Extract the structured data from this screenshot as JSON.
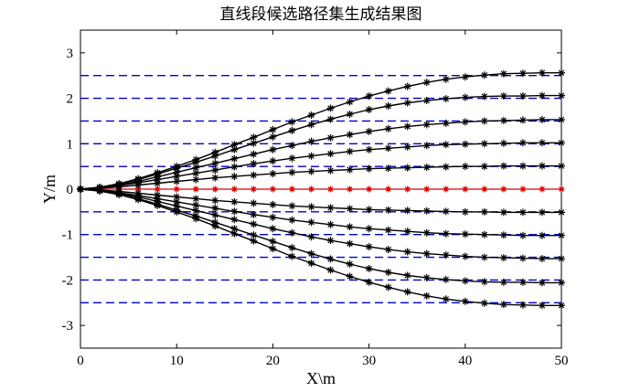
{
  "chart_data": {
    "type": "line",
    "title": "直线段候选路径集生成结果图",
    "xlabel": "X\\m",
    "ylabel": "Y/m",
    "xlim": [
      0,
      50
    ],
    "ylim": [
      -3.5,
      3.5
    ],
    "xticks": [
      0,
      10,
      20,
      30,
      40,
      50
    ],
    "yticks": [
      -3,
      -2,
      -1,
      0,
      1,
      2,
      3
    ],
    "xtick_labels": [
      "0",
      "10",
      "20",
      "30",
      "40",
      "50"
    ],
    "ytick_labels": [
      "-3",
      "-2",
      "-1",
      "0",
      "1",
      "2",
      "3"
    ],
    "grid": false,
    "reference_lines": {
      "y": [
        2.5,
        2.0,
        1.5,
        1.0,
        0.5,
        -0.5,
        -1.0,
        -1.5,
        -2.0,
        -2.5
      ],
      "x_range": [
        0,
        50
      ],
      "color": "#0000cc",
      "style": "dashed"
    },
    "center_line": {
      "y": 0,
      "x_range": [
        0,
        50
      ],
      "color": "#dd0000",
      "marker": "star"
    },
    "paths": {
      "x": [
        0,
        2,
        4,
        6,
        8,
        10,
        12,
        14,
        16,
        18,
        20,
        22,
        24,
        26,
        28,
        30,
        32,
        34,
        36,
        38,
        40,
        42,
        44,
        46,
        48,
        50
      ],
      "color": "#000000",
      "marker": "star",
      "series": [
        {
          "end_y": 2.5,
          "y": [
            0,
            0.04,
            0.12,
            0.23,
            0.36,
            0.5,
            0.65,
            0.81,
            0.98,
            1.14,
            1.31,
            1.48,
            1.63,
            1.78,
            1.92,
            2.05,
            2.16,
            2.26,
            2.35,
            2.42,
            2.47,
            2.51,
            2.54,
            2.55,
            2.56,
            2.56
          ]
        },
        {
          "end_y": 2.0,
          "y": [
            0,
            0.04,
            0.11,
            0.21,
            0.33,
            0.46,
            0.59,
            0.73,
            0.87,
            1.01,
            1.15,
            1.29,
            1.42,
            1.54,
            1.65,
            1.75,
            1.83,
            1.9,
            1.95,
            1.99,
            2.02,
            2.04,
            2.05,
            2.05,
            2.06,
            2.06
          ]
        },
        {
          "end_y": 1.5,
          "y": [
            0,
            0.03,
            0.09,
            0.17,
            0.27,
            0.37,
            0.47,
            0.57,
            0.67,
            0.77,
            0.87,
            0.96,
            1.05,
            1.13,
            1.2,
            1.27,
            1.33,
            1.38,
            1.42,
            1.45,
            1.48,
            1.5,
            1.51,
            1.52,
            1.53,
            1.53
          ]
        },
        {
          "end_y": 1.0,
          "y": [
            0,
            0.03,
            0.08,
            0.14,
            0.21,
            0.28,
            0.35,
            0.42,
            0.49,
            0.56,
            0.62,
            0.68,
            0.73,
            0.78,
            0.83,
            0.87,
            0.9,
            0.93,
            0.96,
            0.98,
            0.99,
            1.0,
            1.01,
            1.02,
            1.02,
            1.02
          ]
        },
        {
          "end_y": 0.5,
          "y": [
            0,
            0.02,
            0.05,
            0.09,
            0.13,
            0.17,
            0.21,
            0.25,
            0.28,
            0.31,
            0.34,
            0.37,
            0.39,
            0.41,
            0.43,
            0.45,
            0.46,
            0.47,
            0.48,
            0.49,
            0.5,
            0.5,
            0.51,
            0.51,
            0.51,
            0.51
          ]
        },
        {
          "end_y": -0.5,
          "y": [
            0,
            -0.02,
            -0.05,
            -0.09,
            -0.13,
            -0.17,
            -0.21,
            -0.25,
            -0.28,
            -0.31,
            -0.34,
            -0.37,
            -0.39,
            -0.41,
            -0.43,
            -0.45,
            -0.46,
            -0.47,
            -0.48,
            -0.49,
            -0.5,
            -0.5,
            -0.51,
            -0.51,
            -0.51,
            -0.51
          ]
        },
        {
          "end_y": -1.0,
          "y": [
            0,
            -0.03,
            -0.08,
            -0.14,
            -0.21,
            -0.28,
            -0.35,
            -0.42,
            -0.49,
            -0.56,
            -0.62,
            -0.68,
            -0.73,
            -0.78,
            -0.83,
            -0.87,
            -0.9,
            -0.93,
            -0.96,
            -0.98,
            -0.99,
            -1.0,
            -1.01,
            -1.02,
            -1.02,
            -1.02
          ]
        },
        {
          "end_y": -1.5,
          "y": [
            0,
            -0.03,
            -0.09,
            -0.17,
            -0.27,
            -0.37,
            -0.47,
            -0.57,
            -0.67,
            -0.77,
            -0.87,
            -0.96,
            -1.05,
            -1.13,
            -1.2,
            -1.27,
            -1.33,
            -1.38,
            -1.42,
            -1.45,
            -1.48,
            -1.5,
            -1.51,
            -1.52,
            -1.53,
            -1.53
          ]
        },
        {
          "end_y": -2.0,
          "y": [
            0,
            -0.04,
            -0.11,
            -0.21,
            -0.33,
            -0.46,
            -0.59,
            -0.73,
            -0.87,
            -1.01,
            -1.15,
            -1.29,
            -1.42,
            -1.54,
            -1.65,
            -1.75,
            -1.83,
            -1.9,
            -1.95,
            -1.99,
            -2.02,
            -2.04,
            -2.05,
            -2.05,
            -2.06,
            -2.06
          ]
        },
        {
          "end_y": -2.5,
          "y": [
            0,
            -0.04,
            -0.12,
            -0.23,
            -0.36,
            -0.5,
            -0.65,
            -0.81,
            -0.98,
            -1.14,
            -1.31,
            -1.48,
            -1.63,
            -1.78,
            -1.92,
            -2.05,
            -2.16,
            -2.26,
            -2.35,
            -2.42,
            -2.47,
            -2.51,
            -2.54,
            -2.55,
            -2.56,
            -2.56
          ]
        }
      ]
    }
  }
}
